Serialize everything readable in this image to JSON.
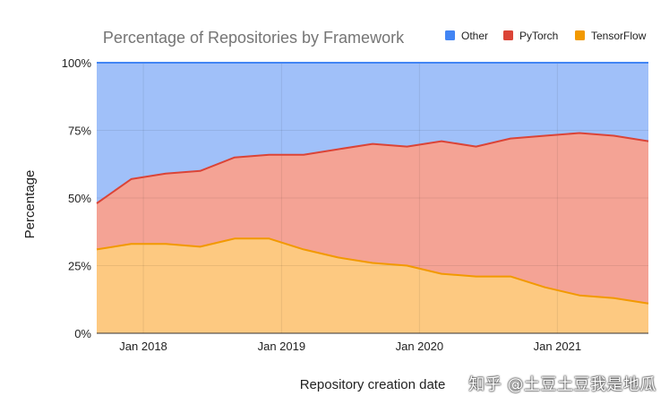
{
  "chart_data": {
    "type": "area",
    "stacked": true,
    "title": "Percentage of Repositories by Framework",
    "xlabel": "Repository creation date",
    "ylabel": "Percentage",
    "ylim": [
      0,
      100
    ],
    "x_ticks": [
      "Jan 2018",
      "Jan 2019",
      "Jan 2020",
      "Jan 2021"
    ],
    "y_ticks": [
      "0%",
      "25%",
      "50%",
      "75%",
      "100%"
    ],
    "grid": true,
    "legend_position": "top-right",
    "x": [
      "2017-09",
      "2017-12",
      "2018-03",
      "2018-06",
      "2018-09",
      "2018-12",
      "2019-03",
      "2019-06",
      "2019-09",
      "2019-12",
      "2020-03",
      "2020-06",
      "2020-09",
      "2020-12",
      "2021-03",
      "2021-06",
      "2021-09"
    ],
    "series": [
      {
        "name": "TensorFlow",
        "color": "#f29900",
        "fill": "#fdc981",
        "values": [
          31,
          33,
          33,
          32,
          35,
          35,
          31,
          28,
          26,
          25,
          22,
          21,
          21,
          17,
          14,
          13,
          11
        ]
      },
      {
        "name": "PyTorch",
        "color": "#db4437",
        "fill": "#f4a395",
        "values": [
          17,
          24,
          26,
          28,
          30,
          31,
          35,
          40,
          44,
          44,
          49,
          48,
          51,
          56,
          60,
          60,
          60
        ]
      },
      {
        "name": "Other",
        "color": "#4285f4",
        "fill": "#a0c0f9",
        "values": [
          52,
          43,
          41,
          40,
          35,
          34,
          34,
          32,
          30,
          31,
          29,
          31,
          28,
          27,
          26,
          27,
          29
        ]
      }
    ]
  },
  "watermark": "知乎 @土豆土豆我是地瓜"
}
